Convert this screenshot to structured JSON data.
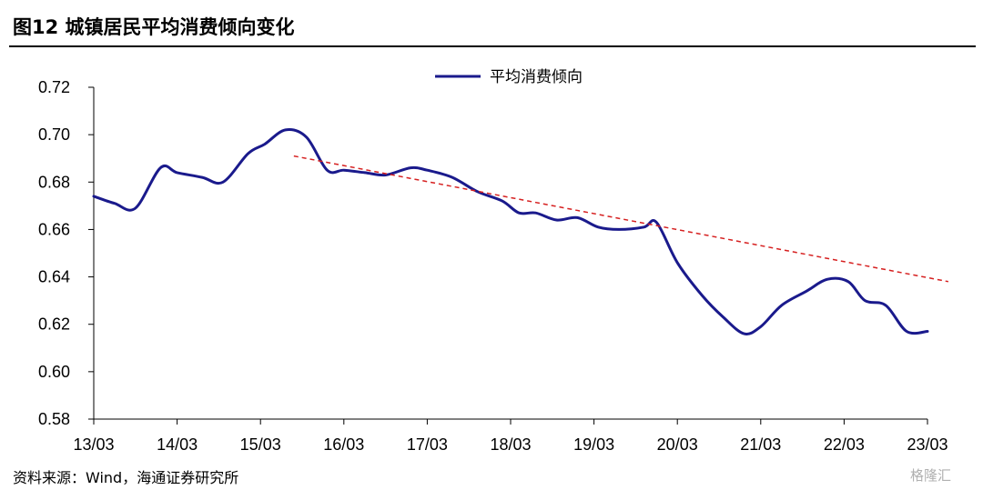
{
  "title": "图12 城镇居民平均消费倾向变化",
  "source": "资料来源：Wind，海通证券研究所",
  "watermark": "格隆汇",
  "chart_data": {
    "type": "line",
    "ylim": [
      0.58,
      0.72
    ],
    "yticks": [
      0.58,
      0.6,
      0.62,
      0.64,
      0.66,
      0.68,
      0.7,
      0.72
    ],
    "ytick_labels": [
      "0.58",
      "0.60",
      "0.62",
      "0.64",
      "0.66",
      "0.68",
      "0.70",
      "0.72"
    ],
    "xlim": [
      2013.0,
      2023.0
    ],
    "xticks": [
      2013,
      2014,
      2015,
      2016,
      2017,
      2018,
      2019,
      2020,
      2021,
      2022,
      2023
    ],
    "xtick_labels": [
      "13/03",
      "14/03",
      "15/03",
      "16/03",
      "17/03",
      "18/03",
      "19/03",
      "20/03",
      "21/03",
      "22/03",
      "23/03"
    ],
    "legend_position": "top-center",
    "series": [
      {
        "name": "平均消费倾向",
        "color": "#1a1a8c",
        "style": "solid",
        "points": [
          [
            2013.0,
            0.674
          ],
          [
            2013.25,
            0.671
          ],
          [
            2013.5,
            0.669
          ],
          [
            2013.8,
            0.686
          ],
          [
            2014.0,
            0.684
          ],
          [
            2014.3,
            0.682
          ],
          [
            2014.55,
            0.68
          ],
          [
            2014.85,
            0.692
          ],
          [
            2015.05,
            0.696
          ],
          [
            2015.3,
            0.702
          ],
          [
            2015.55,
            0.699
          ],
          [
            2015.8,
            0.685
          ],
          [
            2016.0,
            0.685
          ],
          [
            2016.25,
            0.684
          ],
          [
            2016.5,
            0.683
          ],
          [
            2016.8,
            0.686
          ],
          [
            2017.0,
            0.685
          ],
          [
            2017.3,
            0.682
          ],
          [
            2017.6,
            0.676
          ],
          [
            2017.9,
            0.672
          ],
          [
            2018.1,
            0.667
          ],
          [
            2018.3,
            0.667
          ],
          [
            2018.55,
            0.664
          ],
          [
            2018.8,
            0.665
          ],
          [
            2019.05,
            0.661
          ],
          [
            2019.3,
            0.66
          ],
          [
            2019.6,
            0.661
          ],
          [
            2019.75,
            0.663
          ],
          [
            2020.0,
            0.646
          ],
          [
            2020.3,
            0.632
          ],
          [
            2020.55,
            0.623
          ],
          [
            2020.8,
            0.616
          ],
          [
            2021.0,
            0.619
          ],
          [
            2021.25,
            0.628
          ],
          [
            2021.55,
            0.634
          ],
          [
            2021.8,
            0.639
          ],
          [
            2022.05,
            0.638
          ],
          [
            2022.25,
            0.63
          ],
          [
            2022.5,
            0.628
          ],
          [
            2022.75,
            0.617
          ],
          [
            2023.0,
            0.617
          ]
        ]
      },
      {
        "name": "trend",
        "color": "#d62020",
        "style": "dashed",
        "points": [
          [
            2015.4,
            0.691
          ],
          [
            2023.25,
            0.638
          ]
        ]
      }
    ]
  }
}
